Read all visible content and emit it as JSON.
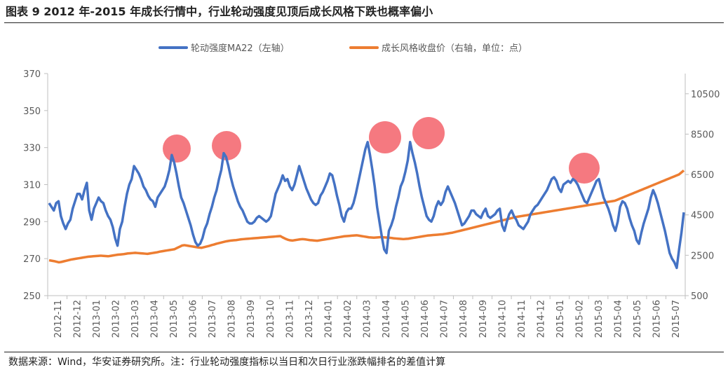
{
  "figure": {
    "title": "图表 9 2012 年-2015 年成长行情中，行业轮动强度见顶后成长风格下跌也概率偏小",
    "source": "数据来源：Wind，华安证券研究所。注：行业轮动强度指标以当日和次日行业涨跌幅排名的差值计算"
  },
  "colors": {
    "rotation": "#4472c4",
    "growth": "#ed7d31",
    "highlight": "#f4666e"
  },
  "chart_data": {
    "type": "line",
    "x_ticks": [
      "2012-11",
      "2012-12",
      "2013-01",
      "2013-02",
      "2013-03",
      "2013-04",
      "2013-05",
      "2013-06",
      "2013-07",
      "2013-08",
      "2013-09",
      "2013-10",
      "2013-11",
      "2013-12",
      "2014-01",
      "2014-02",
      "2014-03",
      "2014-04",
      "2014-05",
      "2014-06",
      "2014-07",
      "2014-08",
      "2014-09",
      "2014-10",
      "2014-11",
      "2014-12",
      "2015-01",
      "2015-02",
      "2015-03",
      "2015-04",
      "2015-05",
      "2015-06",
      "2015-07"
    ],
    "y_left_ticks": [
      "370",
      "350",
      "330",
      "310",
      "290",
      "270",
      "250"
    ],
    "y_right_ticks": [
      "10500",
      "8500",
      "6500",
      "4500",
      "2500",
      "500"
    ],
    "ylim_left": [
      250,
      370
    ],
    "ylim_right": [
      500,
      11500
    ],
    "series": [
      {
        "name": "轮动强度MA22（左轴）",
        "axis": "left",
        "values": [
          300,
          298,
          296,
          300,
          301,
          293,
          289,
          286,
          289,
          291,
          297,
          301,
          305,
          305,
          302,
          307,
          311,
          296,
          291,
          297,
          300,
          303,
          301,
          300,
          296,
          293,
          291,
          287,
          281,
          277,
          286,
          290,
          298,
          305,
          310,
          313,
          320,
          318,
          316,
          313,
          309,
          307,
          304,
          302,
          301,
          298,
          303,
          305,
          307,
          309,
          313,
          318,
          326,
          322,
          316,
          309,
          303,
          300,
          296,
          292,
          288,
          283,
          279,
          277,
          278,
          281,
          286,
          289,
          294,
          298,
          303,
          307,
          313,
          318,
          327,
          325,
          320,
          314,
          309,
          305,
          301,
          298,
          296,
          293,
          290,
          289,
          289,
          290,
          292,
          293,
          292,
          291,
          290,
          291,
          293,
          299,
          305,
          308,
          311,
          315,
          312,
          313,
          309,
          307,
          310,
          315,
          320,
          316,
          312,
          308,
          305,
          302,
          300,
          299,
          300,
          304,
          306,
          309,
          312,
          316,
          315,
          310,
          304,
          299,
          293,
          290,
          295,
          297,
          297,
          300,
          305,
          311,
          317,
          323,
          329,
          333,
          326,
          318,
          309,
          298,
          290,
          282,
          275,
          273,
          285,
          288,
          292,
          298,
          303,
          309,
          312,
          317,
          323,
          333,
          327,
          322,
          316,
          309,
          303,
          298,
          293,
          291,
          290,
          293,
          298,
          301,
          299,
          301,
          306,
          309,
          306,
          303,
          300,
          296,
          292,
          288,
          289,
          291,
          293,
          296,
          296,
          294,
          293,
          292,
          295,
          297,
          293,
          292,
          293,
          294,
          296,
          297,
          288,
          285,
          290,
          294,
          296,
          293,
          291,
          288,
          287,
          286,
          288,
          290,
          294,
          296,
          298,
          299,
          301,
          303,
          305,
          307,
          310,
          313,
          314,
          312,
          308,
          306,
          310,
          311,
          312,
          311,
          313,
          312,
          310,
          307,
          304,
          301,
          300,
          303,
          306,
          309,
          312,
          313,
          308,
          303,
          300,
          297,
          293,
          288,
          285,
          290,
          298,
          301,
          300,
          297,
          292,
          288,
          285,
          280,
          278,
          284,
          289,
          293,
          297,
          303,
          307,
          304,
          300,
          295,
          290,
          285,
          279,
          273,
          270,
          268,
          265,
          275,
          284,
          295
        ]
      },
      {
        "name": "成长风格收盘价（右轴，单位：点）",
        "axis": "right",
        "values": [
          2250,
          2230,
          2210,
          2180,
          2150,
          2170,
          2200,
          2230,
          2260,
          2290,
          2310,
          2330,
          2350,
          2370,
          2390,
          2410,
          2430,
          2440,
          2450,
          2460,
          2470,
          2480,
          2470,
          2460,
          2450,
          2470,
          2490,
          2510,
          2530,
          2540,
          2550,
          2570,
          2590,
          2600,
          2610,
          2620,
          2610,
          2600,
          2590,
          2580,
          2570,
          2590,
          2610,
          2630,
          2650,
          2680,
          2700,
          2720,
          2740,
          2760,
          2780,
          2800,
          2860,
          2920,
          2980,
          3000,
          2980,
          2960,
          2940,
          2920,
          2900,
          2880,
          2870,
          2900,
          2930,
          2960,
          3000,
          3030,
          3070,
          3100,
          3130,
          3160,
          3190,
          3210,
          3230,
          3240,
          3250,
          3270,
          3290,
          3300,
          3310,
          3320,
          3330,
          3340,
          3350,
          3360,
          3370,
          3380,
          3390,
          3400,
          3410,
          3420,
          3430,
          3440,
          3450,
          3380,
          3320,
          3270,
          3240,
          3230,
          3250,
          3270,
          3290,
          3300,
          3290,
          3270,
          3250,
          3240,
          3230,
          3220,
          3240,
          3260,
          3280,
          3300,
          3320,
          3340,
          3360,
          3380,
          3400,
          3420,
          3440,
          3450,
          3460,
          3470,
          3480,
          3490,
          3470,
          3450,
          3430,
          3410,
          3390,
          3380,
          3370,
          3380,
          3390,
          3400,
          3390,
          3380,
          3370,
          3360,
          3340,
          3330,
          3320,
          3310,
          3300,
          3310,
          3320,
          3340,
          3360,
          3380,
          3400,
          3420,
          3440,
          3460,
          3480,
          3490,
          3500,
          3510,
          3520,
          3530,
          3540,
          3560,
          3580,
          3600,
          3620,
          3650,
          3680,
          3710,
          3740,
          3770,
          3800,
          3830,
          3860,
          3890,
          3920,
          3950,
          3980,
          4010,
          4040,
          4070,
          4100,
          4130,
          4160,
          4190,
          4220,
          4250,
          4280,
          4310,
          4340,
          4370,
          4400,
          4420,
          4440,
          4460,
          4480,
          4500,
          4520,
          4540,
          4560,
          4580,
          4600,
          4620,
          4640,
          4660,
          4680,
          4700,
          4720,
          4740,
          4760,
          4780,
          4800,
          4820,
          4840,
          4860,
          4880,
          4900,
          4920,
          4940,
          4960,
          4980,
          5000,
          5020,
          5040,
          5060,
          5080,
          5100,
          5120,
          5140,
          5160,
          5180,
          5200,
          5250,
          5300,
          5350,
          5400,
          5450,
          5500,
          5550,
          5600,
          5650,
          5700,
          5750,
          5800,
          5850,
          5900,
          5950,
          6000,
          6050,
          6100,
          6150,
          6200,
          6250,
          6300,
          6350,
          6400,
          6450,
          6500,
          6600,
          6700
        ]
      }
    ]
  }
}
